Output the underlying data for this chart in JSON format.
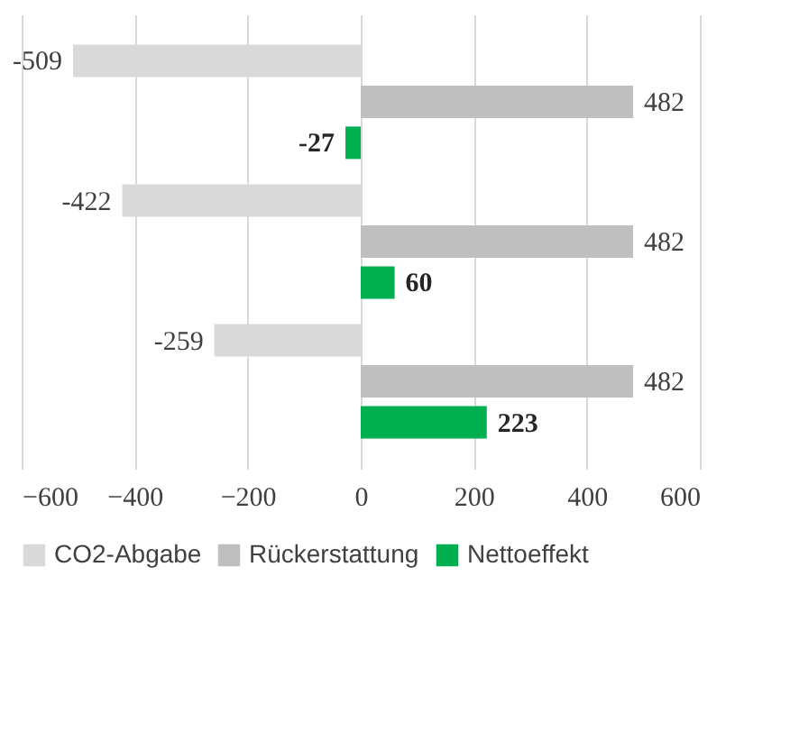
{
  "chart_data": {
    "type": "bar",
    "orientation": "horizontal",
    "categories": [
      null,
      null,
      null
    ],
    "series": [
      {
        "name": "CO2-Abgabe",
        "color": "#d9d9d9",
        "values": [
          -509,
          -422,
          -259
        ]
      },
      {
        "name": "Rückerstattung",
        "color": "#bfbfbf",
        "values": [
          482,
          482,
          482
        ]
      },
      {
        "name": "Nettoeffekt",
        "color": "#00b050",
        "values": [
          -27,
          60,
          223
        ]
      }
    ],
    "xlim": [
      -600,
      600
    ],
    "xticks": [
      -600,
      -400,
      -200,
      0,
      200,
      400,
      600
    ],
    "grid": "x",
    "legend": "bottom",
    "data_labels": true,
    "tick_labels": "x"
  }
}
